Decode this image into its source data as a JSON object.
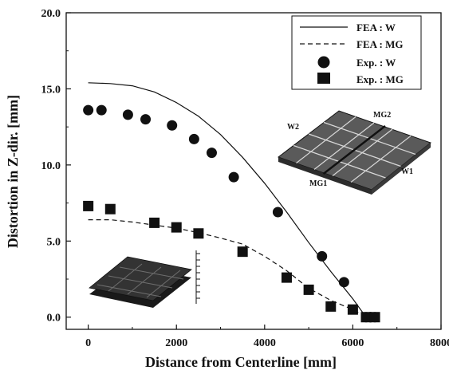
{
  "chart_data": {
    "type": "scatter",
    "title": "",
    "xlabel": "Distance from Centerline [mm]",
    "ylabel": "Distortion in Z-dir. [mm]",
    "xlim": [
      -500,
      8000
    ],
    "ylim": [
      -0.8,
      20.0
    ],
    "xticks": [
      0,
      2000,
      4000,
      6000,
      8000
    ],
    "yticks": [
      0.0,
      5.0,
      10.0,
      15.0,
      20.0
    ],
    "xtick_labels": [
      "0",
      "2000",
      "4000",
      "6000",
      "8000"
    ],
    "ytick_labels": [
      "0.0",
      "5.0",
      "10.0",
      "15.0",
      "20.0"
    ],
    "grid": false,
    "legend_position": "top-right",
    "series": [
      {
        "name": "FEA : W",
        "kind": "line",
        "style": "solid",
        "x": [
          0,
          500,
          1000,
          1500,
          2000,
          2500,
          3000,
          3500,
          4000,
          4500,
          5000,
          5500,
          6000,
          6300
        ],
        "y": [
          15.4,
          15.35,
          15.2,
          14.8,
          14.1,
          13.2,
          12.0,
          10.5,
          8.8,
          6.9,
          4.9,
          3.0,
          1.2,
          0.0
        ]
      },
      {
        "name": "FEA : MG",
        "kind": "line",
        "style": "dashed",
        "x": [
          0,
          500,
          1000,
          1500,
          2000,
          2500,
          3000,
          3500,
          4000,
          4500,
          5000,
          5500,
          6000,
          6300
        ],
        "y": [
          6.4,
          6.4,
          6.25,
          6.05,
          5.85,
          5.55,
          5.2,
          4.8,
          4.0,
          3.05,
          1.9,
          1.1,
          0.5,
          0.0
        ]
      },
      {
        "name": "Exp. : W",
        "kind": "marker",
        "marker": "circle",
        "x": [
          0,
          300,
          900,
          1300,
          1900,
          2400,
          2800,
          3300,
          4300,
          5300,
          5800,
          6300,
          6400,
          6500
        ],
        "y": [
          13.6,
          13.6,
          13.3,
          13.0,
          12.6,
          11.7,
          10.8,
          9.2,
          6.9,
          4.0,
          2.3,
          0.0,
          0.0,
          0.0
        ]
      },
      {
        "name": "Exp. : MG",
        "kind": "marker",
        "marker": "square",
        "x": [
          0,
          500,
          1500,
          2000,
          2500,
          3500,
          4500,
          5000,
          5500,
          6000,
          6300,
          6500
        ],
        "y": [
          7.3,
          7.1,
          6.2,
          5.9,
          5.5,
          4.3,
          2.6,
          1.8,
          0.7,
          0.5,
          0.0,
          0.0
        ]
      }
    ],
    "annotations": [
      "W2",
      "MG2",
      "W1",
      "MG1"
    ]
  }
}
